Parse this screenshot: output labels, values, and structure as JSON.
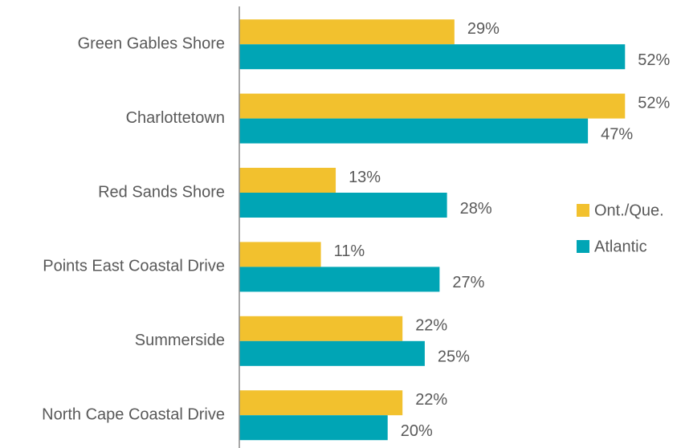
{
  "chart_data": {
    "type": "hbar",
    "categories": [
      "Green Gables Shore",
      "Charlottetown",
      "Red Sands Shore",
      "Points East Coastal Drive",
      "Summerside",
      "North Cape Coastal Drive"
    ],
    "series": [
      {
        "name": "Ont./Que.",
        "color": "#f2c12e",
        "values": [
          29,
          52,
          13,
          11,
          22,
          22
        ],
        "value_labels": [
          "29%",
          "52%",
          "13%",
          "11%",
          "22%",
          "22%"
        ]
      },
      {
        "name": "Atlantic",
        "color": "#00a5b5",
        "values": [
          52,
          47,
          28,
          27,
          25,
          20
        ],
        "value_labels": [
          "52%",
          "47%",
          "28%",
          "27%",
          "25%",
          "20%"
        ]
      }
    ],
    "xlim": [
      0,
      55
    ],
    "legend": "right"
  }
}
